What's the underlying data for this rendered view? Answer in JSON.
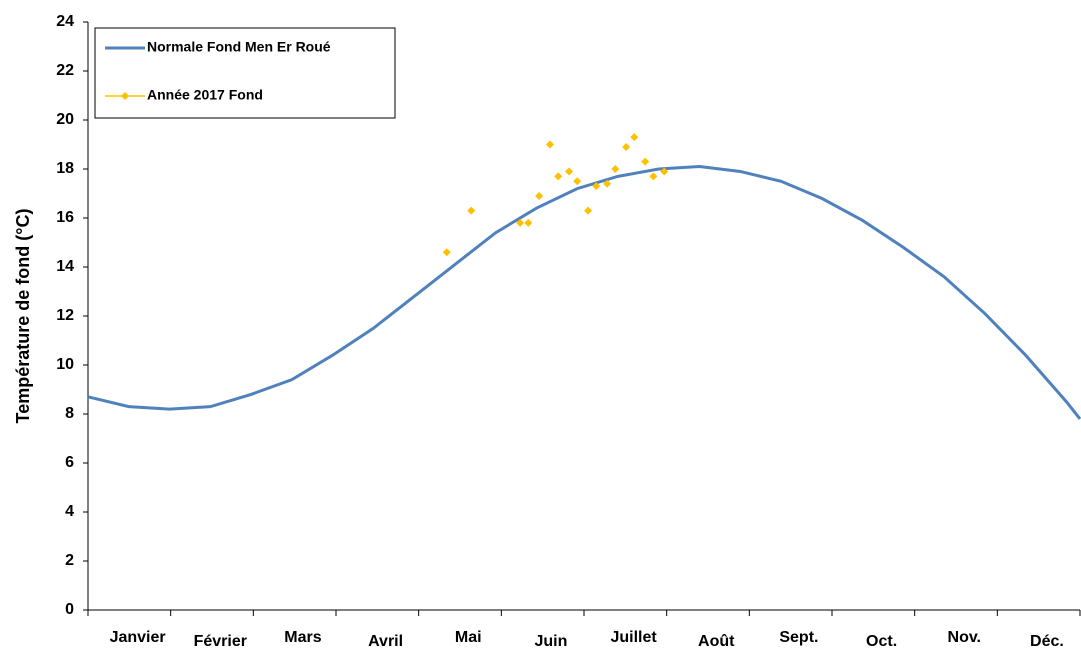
{
  "chart_data": {
    "type": "line",
    "y_label": "Température de fond (°C)",
    "categories": [
      "Janvier",
      "Février",
      "Mars",
      "Avril",
      "Mai",
      "Juin",
      "Juillet",
      "Août",
      "Sept.",
      "Oct.",
      "Nov.",
      "Déc."
    ],
    "xlim": [
      0,
      365
    ],
    "ylim": [
      0,
      24
    ],
    "yticks": [
      0,
      2,
      4,
      6,
      8,
      10,
      12,
      14,
      16,
      18,
      20,
      22,
      24
    ],
    "legend": "upper left",
    "series": [
      {
        "name": "Normale Fond Men Er Roué",
        "type": "line",
        "color": "#4f81bd",
        "x": [
          0,
          15,
          30,
          45,
          60,
          75,
          90,
          105,
          120,
          135,
          150,
          165,
          180,
          195,
          210,
          225,
          240,
          255,
          270,
          285,
          300,
          315,
          330,
          345,
          360,
          365
        ],
        "values": [
          8.7,
          8.3,
          8.2,
          8.3,
          8.8,
          9.4,
          10.4,
          11.5,
          12.8,
          14.1,
          15.4,
          16.4,
          17.2,
          17.7,
          18.0,
          18.1,
          17.9,
          17.5,
          16.8,
          15.9,
          14.8,
          13.6,
          12.1,
          10.4,
          8.5,
          7.8
        ]
      },
      {
        "name": "Année 2017 Fond",
        "type": "scatter",
        "color": "#ffc000",
        "x": [
          132,
          141,
          159,
          162,
          166,
          170,
          173,
          177,
          180,
          184,
          187,
          191,
          194,
          198,
          201,
          205,
          208,
          212
        ],
        "values": [
          14.6,
          16.3,
          15.8,
          15.8,
          16.9,
          19.0,
          17.7,
          17.9,
          17.5,
          16.3,
          17.3,
          17.4,
          18.0,
          18.9,
          19.3,
          18.3,
          17.7,
          17.9
        ]
      }
    ]
  }
}
